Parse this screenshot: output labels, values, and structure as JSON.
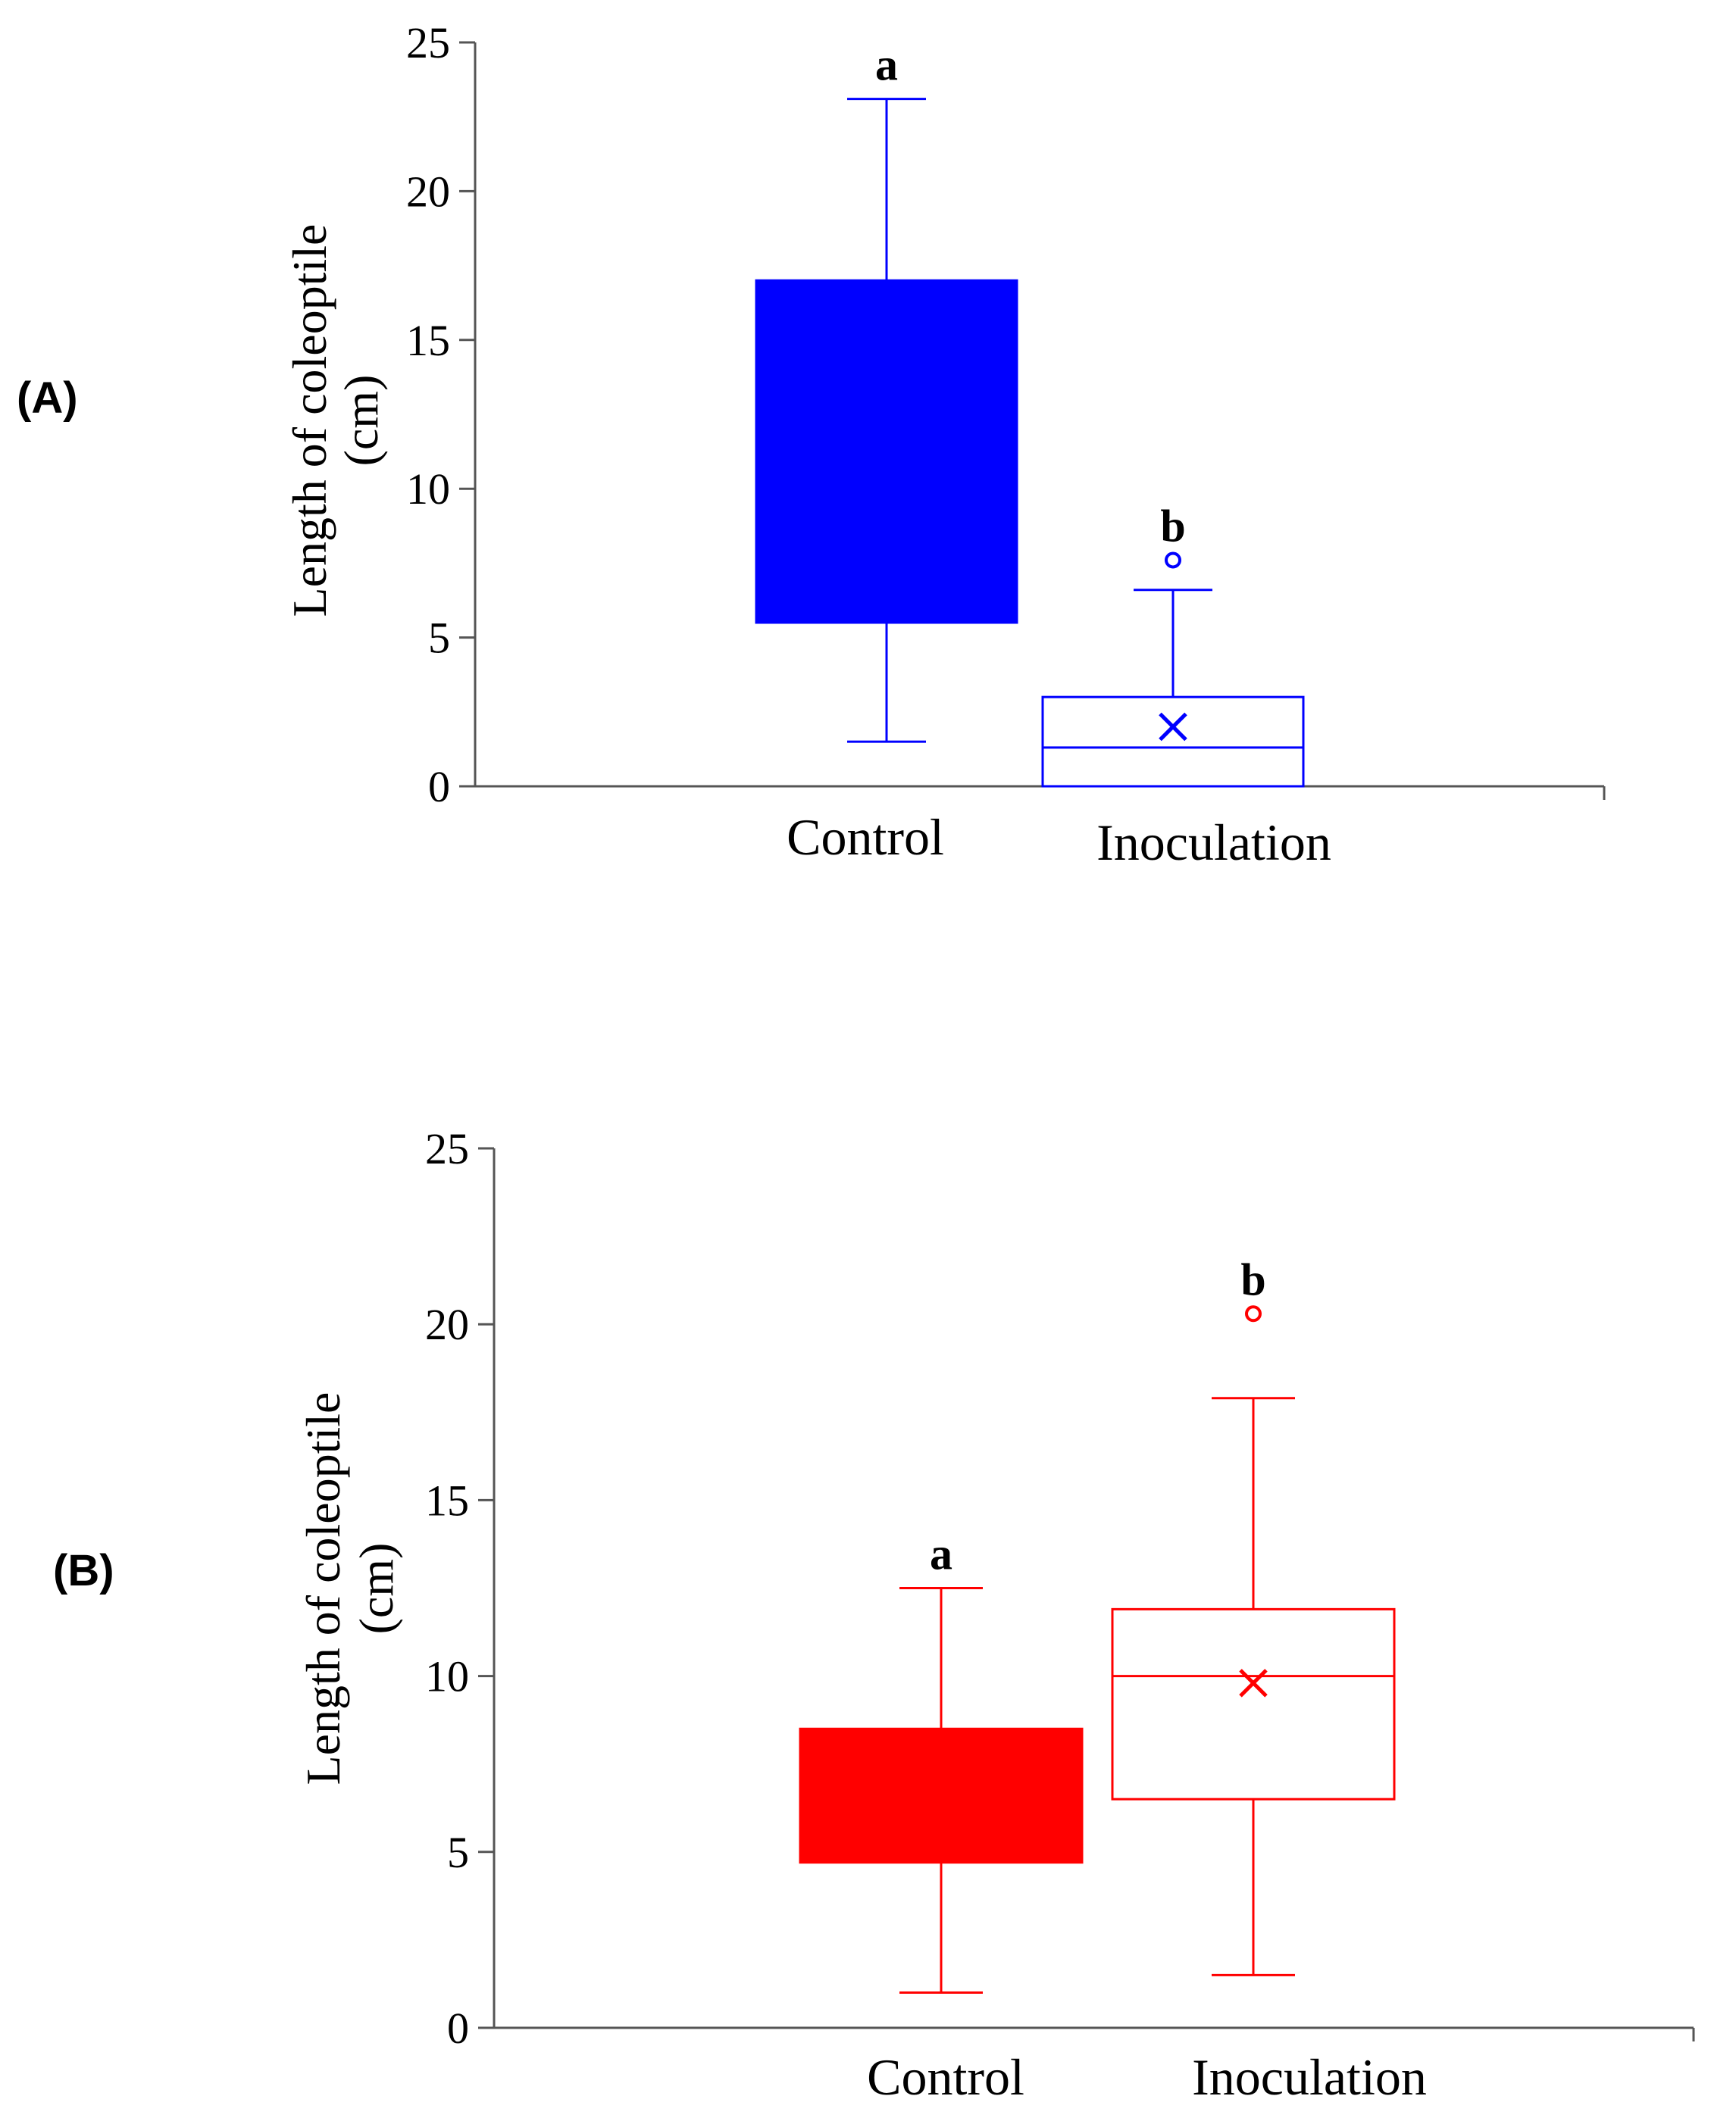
{
  "chart_data": [
    {
      "type": "box",
      "panel_label": "(A)",
      "ylabel_line1": "Length of coleoptile",
      "ylabel_line2": "(cm)",
      "ylim": [
        0,
        25
      ],
      "yticks": [
        0,
        5,
        10,
        15,
        20,
        25
      ],
      "color": "#0000ff",
      "categories": [
        "Control",
        "Inoculation"
      ],
      "boxes": [
        {
          "name": "Control",
          "whisker_low": 1.5,
          "q1": 5.5,
          "median": null,
          "q3": 17.0,
          "whisker_high": 23.1,
          "mean": null,
          "outliers": [],
          "filled": true,
          "letter": "a"
        },
        {
          "name": "Inoculation",
          "whisker_low": 0,
          "q1": 0,
          "median": 1.3,
          "q3": 3.0,
          "whisker_high": 6.6,
          "mean": 2.0,
          "outliers": [
            7.6
          ],
          "filled": false,
          "letter": "b"
        }
      ]
    },
    {
      "type": "box",
      "panel_label": "(B)",
      "ylabel_line1": "Length of coleoptile",
      "ylabel_line2": "(cm)",
      "ylim": [
        0,
        25
      ],
      "yticks": [
        0,
        5,
        10,
        15,
        20,
        25
      ],
      "color": "#ff0000",
      "categories": [
        "Control",
        "Inoculation"
      ],
      "boxes": [
        {
          "name": "Control",
          "whisker_low": 1.0,
          "q1": 4.7,
          "median": null,
          "q3": 8.5,
          "whisker_high": 12.5,
          "mean": null,
          "outliers": [],
          "filled": true,
          "letter": "a"
        },
        {
          "name": "Inoculation",
          "whisker_low": 1.5,
          "q1": 6.5,
          "median": 10.0,
          "q3": 11.9,
          "whisker_high": 17.9,
          "mean": 9.8,
          "outliers": [
            20.3
          ],
          "filled": false,
          "letter": "b"
        }
      ]
    }
  ]
}
